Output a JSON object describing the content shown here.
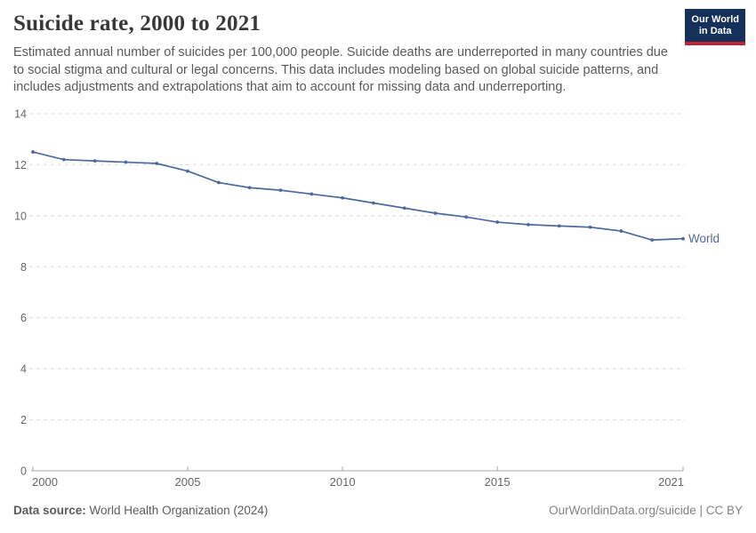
{
  "header": {
    "title": "Suicide rate, 2000 to 2021",
    "subtitle": "Estimated annual number of suicides per 100,000 people. Suicide deaths are underreported in many countries due to social stigma and cultural or legal concerns. This data includes modeling based on global suicide patterns, and includes adjustments and extrapolations that aim to account for missing data and underreporting.",
    "logo": {
      "line1": "Our World",
      "line2": "in Data",
      "bg_color": "#153059",
      "accent_color": "#bf2135"
    }
  },
  "chart_data": {
    "type": "line",
    "title": "Suicide rate, 2000 to 2021",
    "xlabel": "",
    "ylabel": "",
    "x": [
      2000,
      2001,
      2002,
      2003,
      2004,
      2005,
      2006,
      2007,
      2008,
      2009,
      2010,
      2011,
      2012,
      2013,
      2014,
      2015,
      2016,
      2017,
      2018,
      2019,
      2020,
      2021
    ],
    "series": [
      {
        "name": "World",
        "color": "#4c6a9c",
        "values": [
          12.5,
          12.2,
          12.15,
          12.1,
          12.05,
          11.75,
          11.3,
          11.1,
          11.0,
          10.85,
          10.7,
          10.5,
          10.3,
          10.1,
          9.95,
          9.75,
          9.65,
          9.6,
          9.55,
          9.4,
          9.05,
          9.1
        ]
      }
    ],
    "ylim": [
      0,
      14
    ],
    "yticks": [
      0,
      2,
      4,
      6,
      8,
      10,
      12,
      14
    ],
    "xticks": [
      2000,
      2005,
      2010,
      2015,
      2021
    ],
    "grid": "horizontal-dashed",
    "legend_position": "end-of-line-label",
    "end_label": "World"
  },
  "footer": {
    "datasource_label": "Data source:",
    "datasource_value": " World Health Organization (2024)",
    "credit": "OurWorldinData.org/suicide | CC BY"
  },
  "colors": {
    "line": "#4c6a9c",
    "grid": "#dcdcdc",
    "axis": "#a8a8a8",
    "tick_label": "#666666",
    "title": "#383838",
    "subtitle": "#5a5a5a"
  }
}
